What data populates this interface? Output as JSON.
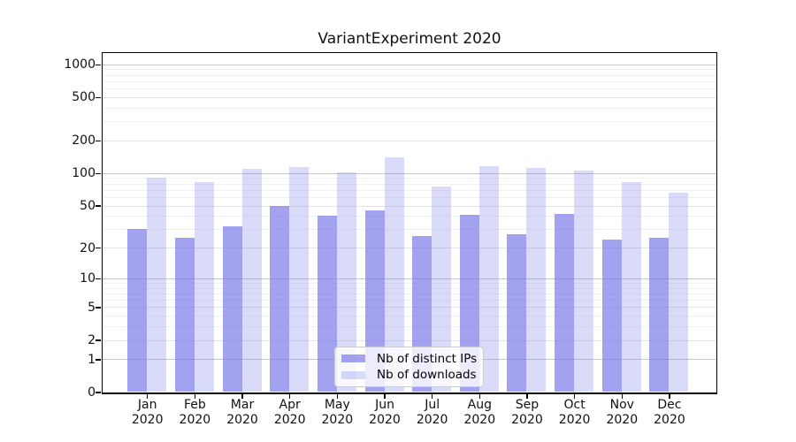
{
  "chart_data": {
    "type": "bar",
    "title": "VariantExperiment 2020",
    "categories": [
      "Jan",
      "Feb",
      "Mar",
      "Apr",
      "May",
      "Jun",
      "Jul",
      "Aug",
      "Sep",
      "Oct",
      "Nov",
      "Dec"
    ],
    "x_tick_year": "2020",
    "series": [
      {
        "name": "Nb of distinct IPs",
        "color": "rgba(122,123,234,0.7)",
        "values": [
          30,
          25,
          32,
          50,
          40,
          45,
          26,
          41,
          27,
          42,
          24,
          25
        ]
      },
      {
        "name": "Nb of downloads",
        "color": "rgba(122,123,234,0.28)",
        "values": [
          90,
          82,
          110,
          113,
          102,
          140,
          75,
          115,
          111,
          105,
          82,
          66
        ]
      }
    ],
    "y_axis": {
      "scale": "symlog",
      "ticks": [
        0,
        1,
        2,
        5,
        10,
        20,
        50,
        100,
        200,
        500,
        1000
      ],
      "top_value": 1283
    },
    "grid": {
      "on": true,
      "major_ticks": [
        1,
        10,
        100,
        1000
      ],
      "mid_ticks": [
        2,
        5,
        20,
        50,
        200,
        500
      ],
      "minor_ticks": [
        3,
        4,
        6,
        7,
        8,
        9,
        30,
        40,
        60,
        70,
        80,
        90,
        300,
        400,
        600,
        700,
        800,
        900
      ],
      "major_color": "#c6c6c6",
      "mid_color": "#e4e4e4",
      "minor_color": "#f1f1f1"
    },
    "legend": {
      "position": "lower center"
    }
  }
}
